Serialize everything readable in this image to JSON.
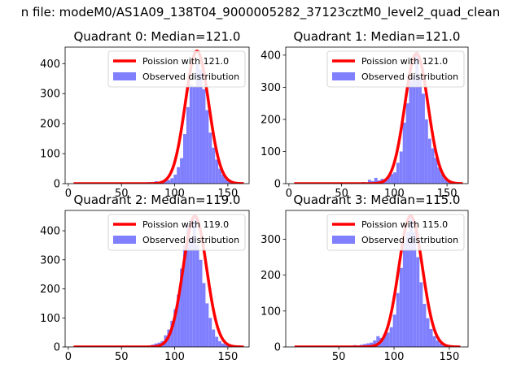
{
  "figure": {
    "suptitle": "n file: modeM0/AS1A09_138T04_9000005282_37123cztM0_level2_quad_clean"
  },
  "style": {
    "hist_color": "#8080ff",
    "poisson_color": "#ff0000",
    "background": "#ffffff"
  },
  "chart_data": [
    {
      "type": "bar",
      "title": "Quadrant 0: Median=121.0",
      "xlabel": "",
      "ylabel": "",
      "xlim": [
        -3,
        170
      ],
      "ylim": [
        0,
        455
      ],
      "xticks": [
        0,
        50,
        100,
        150
      ],
      "yticks": [
        0,
        100,
        200,
        300,
        400
      ],
      "legend_position": "upper right",
      "grid": false,
      "series": [
        {
          "name": "Poission with 121.0",
          "type": "line",
          "lambda": 121.0,
          "x_range": [
            5,
            165
          ],
          "peak": 442,
          "sigma": 11.0
        },
        {
          "name": "Observed distribution",
          "type": "histogram",
          "bin_width": 3,
          "bin_starts": [
            75,
            78,
            81,
            84,
            87,
            90,
            93,
            96,
            99,
            102,
            105,
            108,
            111,
            114,
            117,
            120,
            123,
            126,
            129,
            132,
            135,
            138,
            141,
            144,
            147,
            150,
            153,
            156,
            159
          ],
          "values": [
            5,
            3,
            8,
            4,
            6,
            9,
            12,
            18,
            30,
            55,
            85,
            165,
            255,
            330,
            325,
            400,
            380,
            315,
            245,
            170,
            120,
            80,
            50,
            30,
            15,
            8,
            5,
            3,
            2
          ]
        }
      ]
    },
    {
      "type": "bar",
      "title": "Quadrant 1: Median=121.0",
      "xlabel": "",
      "ylabel": "",
      "xlim": [
        -3,
        170
      ],
      "ylim": [
        0,
        425
      ],
      "xticks": [
        0,
        50,
        100,
        150
      ],
      "yticks": [
        0,
        100,
        200,
        300,
        400
      ],
      "legend_position": "upper right",
      "grid": false,
      "series": [
        {
          "name": "Poission with 121.0",
          "type": "line",
          "lambda": 121.0,
          "x_range": [
            5,
            165
          ],
          "peak": 405,
          "sigma": 11.0
        },
        {
          "name": "Observed distribution",
          "type": "histogram",
          "bin_width": 3,
          "bin_starts": [
            66,
            69,
            72,
            75,
            78,
            81,
            84,
            87,
            90,
            93,
            96,
            99,
            102,
            105,
            108,
            111,
            114,
            117,
            120,
            123,
            126,
            129,
            132,
            135,
            138,
            141,
            144,
            147,
            150,
            153
          ],
          "values": [
            3,
            5,
            4,
            12,
            8,
            18,
            10,
            15,
            14,
            20,
            30,
            35,
            65,
            100,
            190,
            250,
            320,
            330,
            410,
            330,
            280,
            200,
            140,
            110,
            80,
            50,
            30,
            15,
            8,
            5
          ]
        }
      ]
    },
    {
      "type": "bar",
      "title": "Quadrant 2: Median=119.0",
      "xlabel": "",
      "ylabel": "",
      "xlim": [
        -3,
        170
      ],
      "ylim": [
        0,
        470
      ],
      "xticks": [
        0,
        50,
        100,
        150
      ],
      "yticks": [
        0,
        100,
        200,
        300,
        400
      ],
      "legend_position": "upper right",
      "grid": false,
      "series": [
        {
          "name": "Poission with 119.0",
          "type": "line",
          "lambda": 119.0,
          "x_range": [
            5,
            165
          ],
          "peak": 450,
          "sigma": 11.0
        },
        {
          "name": "Observed distribution",
          "type": "histogram",
          "bin_width": 3,
          "bin_starts": [
            69,
            72,
            75,
            78,
            81,
            84,
            87,
            90,
            93,
            96,
            99,
            102,
            105,
            108,
            111,
            114,
            117,
            120,
            123,
            126,
            129,
            132,
            135,
            138,
            141,
            144,
            147,
            150,
            153,
            156
          ],
          "values": [
            3,
            4,
            5,
            8,
            12,
            15,
            20,
            40,
            60,
            90,
            130,
            180,
            270,
            350,
            420,
            380,
            440,
            350,
            300,
            220,
            150,
            100,
            60,
            35,
            20,
            12,
            8,
            5,
            3,
            2
          ]
        }
      ]
    },
    {
      "type": "bar",
      "title": "Quadrant 3: Median=115.0",
      "xlabel": "",
      "ylabel": "",
      "xlim": [
        2,
        167
      ],
      "ylim": [
        0,
        380
      ],
      "xticks": [
        50,
        100,
        150
      ],
      "yticks": [
        0,
        100,
        200,
        300
      ],
      "legend_position": "upper right",
      "grid": false,
      "series": [
        {
          "name": "Poission with 115.0",
          "type": "line",
          "lambda": 115.0,
          "x_range": [
            10,
            160
          ],
          "peak": 365,
          "sigma": 10.7
        },
        {
          "name": "Observed distribution",
          "type": "histogram",
          "bin_width": 3,
          "bin_starts": [
            60,
            63,
            66,
            69,
            72,
            75,
            78,
            81,
            84,
            87,
            90,
            93,
            96,
            99,
            102,
            105,
            108,
            111,
            114,
            117,
            120,
            123,
            126,
            129,
            132,
            135,
            138,
            141,
            144,
            147
          ],
          "values": [
            3,
            5,
            4,
            6,
            8,
            10,
            12,
            18,
            30,
            25,
            35,
            40,
            55,
            90,
            150,
            220,
            290,
            320,
            360,
            320,
            250,
            180,
            120,
            80,
            50,
            30,
            18,
            10,
            5,
            3
          ]
        }
      ]
    }
  ]
}
